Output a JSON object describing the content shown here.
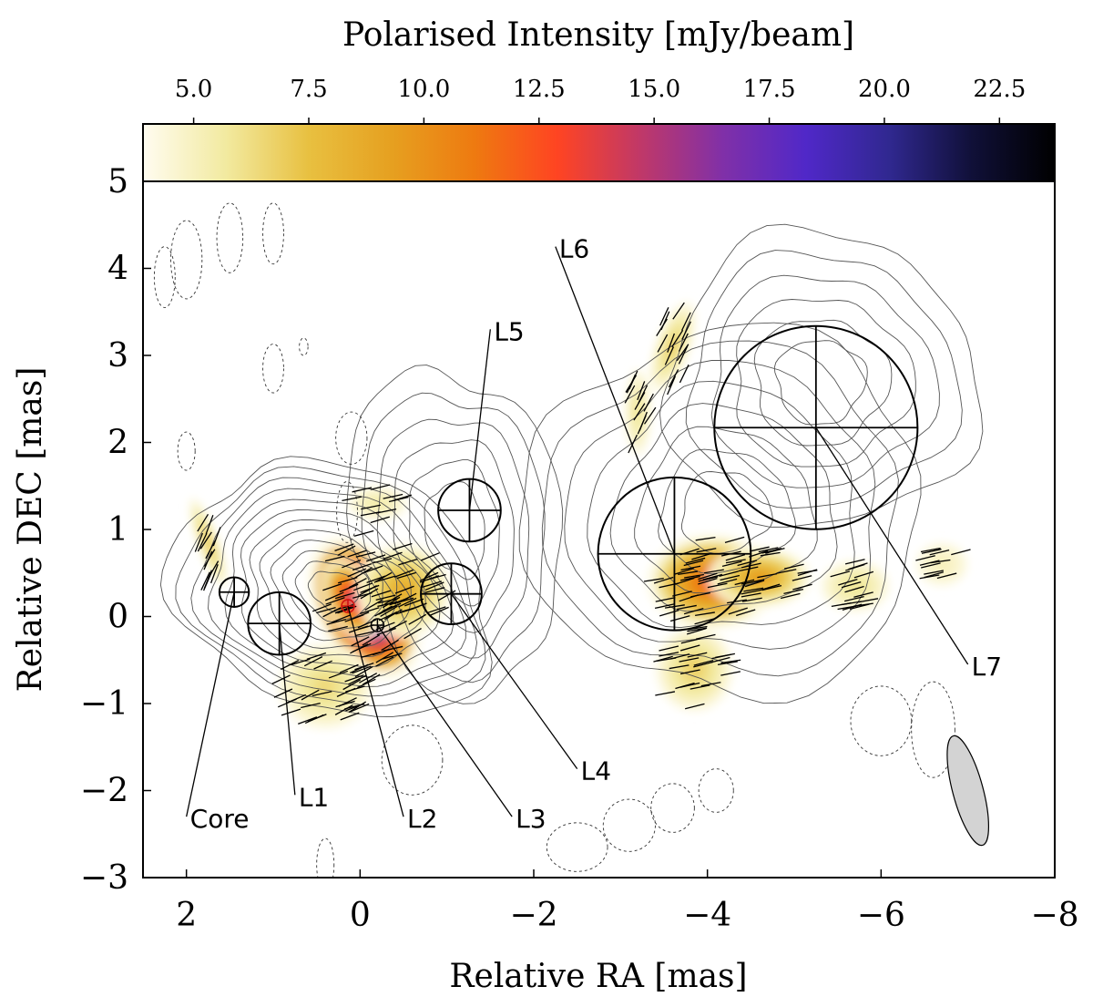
{
  "chart_data": {
    "type": "scatter",
    "subtype": "radio-polarisation-map",
    "xlabel": "Relative RA [mas]",
    "ylabel": "Relative DEC [mas]",
    "xlim": [
      2.5,
      -8
    ],
    "ylim": [
      -3,
      5
    ],
    "x_ticks": [
      2,
      0,
      -2,
      -4,
      -6,
      -8
    ],
    "x_tick_labels": [
      "2",
      "0",
      "−2",
      "−4",
      "−6",
      "−8"
    ],
    "y_ticks": [
      5,
      4,
      3,
      2,
      1,
      0,
      -1,
      -2,
      -3
    ],
    "y_tick_labels": [
      "5",
      "4",
      "3",
      "2",
      "1",
      "0",
      "−1",
      "−2",
      "−3"
    ],
    "colorbar": {
      "label": "Polarised Intensity [mJy/beam]",
      "range": [
        3.9,
        23.7
      ],
      "ticks": [
        5.0,
        7.5,
        10.0,
        12.5,
        15.0,
        17.5,
        20.0,
        22.5
      ],
      "tick_labels": [
        "5.0",
        "7.5",
        "10.0",
        "12.5",
        "15.0",
        "17.5",
        "20.0",
        "22.5"
      ],
      "colors": [
        "#fffcf0",
        "#f2eaa0",
        "#e8c040",
        "#e6a020",
        "#ee7a10",
        "#ff4422",
        "#c03868",
        "#8030a8",
        "#5028c8",
        "#302890",
        "#101038",
        "#000000"
      ],
      "placement": "top"
    },
    "components": [
      {
        "name": "Core",
        "x": 1.45,
        "y": 0.28,
        "r": 0.17
      },
      {
        "name": "L1",
        "x": 0.93,
        "y": -0.08,
        "r": 0.36
      },
      {
        "name": "L2",
        "x": 0.14,
        "y": 0.12,
        "r": 0.05
      },
      {
        "name": "L3",
        "x": -0.2,
        "y": -0.1,
        "r": 0.05
      },
      {
        "name": "L4",
        "x": -1.05,
        "y": 0.26,
        "r": 0.35
      },
      {
        "name": "L5",
        "x": -1.26,
        "y": 1.22,
        "r": 0.36
      },
      {
        "name": "L6",
        "x": -3.62,
        "y": 0.72,
        "r": 0.88
      },
      {
        "name": "L7",
        "x": -5.25,
        "y": 2.17,
        "r": 1.17
      }
    ],
    "label_positions": [
      {
        "name": "Core",
        "x": 2.0,
        "y": -2.3
      },
      {
        "name": "L1",
        "x": 0.75,
        "y": -2.05
      },
      {
        "name": "L2",
        "x": -0.5,
        "y": -2.3
      },
      {
        "name": "L3",
        "x": -1.75,
        "y": -2.3
      },
      {
        "name": "L4",
        "x": -2.5,
        "y": -1.75
      },
      {
        "name": "L5",
        "x": -1.5,
        "y": 3.3
      },
      {
        "name": "L6",
        "x": -2.25,
        "y": 4.25
      },
      {
        "name": "L7",
        "x": -7.0,
        "y": -0.55
      }
    ],
    "polarised_regions": [
      {
        "x": -0.05,
        "y": 0.1,
        "sx": 0.55,
        "sy": 0.9,
        "angle": 30,
        "peak": 23.5
      },
      {
        "x": 0.1,
        "y": 0.2,
        "sx": 0.3,
        "sy": 0.5,
        "angle": 25,
        "peak": 16
      },
      {
        "x": -0.5,
        "y": 0.3,
        "sx": 0.55,
        "sy": 0.55,
        "angle": 0,
        "peak": 9
      },
      {
        "x": 0.4,
        "y": -0.8,
        "sx": 0.55,
        "sy": 0.5,
        "angle": 0,
        "peak": 6.5
      },
      {
        "x": 1.75,
        "y": 0.85,
        "sx": 0.12,
        "sy": 0.55,
        "angle": 20,
        "peak": 7.5
      },
      {
        "x": -0.2,
        "y": 1.3,
        "sx": 0.35,
        "sy": 0.2,
        "angle": 0,
        "peak": 5.5
      },
      {
        "x": -4.05,
        "y": 0.4,
        "sx": 0.75,
        "sy": 0.55,
        "angle": 0,
        "peak": 13
      },
      {
        "x": -4.6,
        "y": 0.45,
        "sx": 0.6,
        "sy": 0.35,
        "angle": 0,
        "peak": 10
      },
      {
        "x": -3.85,
        "y": -0.6,
        "sx": 0.45,
        "sy": 0.5,
        "angle": 0,
        "peak": 7
      },
      {
        "x": -3.6,
        "y": 3.1,
        "sx": 0.2,
        "sy": 0.55,
        "angle": -20,
        "peak": 7
      },
      {
        "x": -3.2,
        "y": 2.35,
        "sx": 0.15,
        "sy": 0.5,
        "angle": 0,
        "peak": 6
      },
      {
        "x": -6.7,
        "y": 0.6,
        "sx": 0.3,
        "sy": 0.25,
        "angle": 0,
        "peak": 5
      },
      {
        "x": -5.7,
        "y": 0.35,
        "sx": 0.4,
        "sy": 0.3,
        "angle": 0,
        "peak": 6
      }
    ],
    "contour_groups": [
      {
        "x": 0.3,
        "y": 0.3,
        "sx": 1.9,
        "sy": 1.4,
        "angle": -20,
        "levels": 12
      },
      {
        "x": -1.1,
        "y": 1.0,
        "sx": 1.2,
        "sy": 1.9,
        "angle": 10,
        "levels": 6
      },
      {
        "x": -4.2,
        "y": 1.2,
        "sx": 2.3,
        "sy": 2.1,
        "angle": 5,
        "levels": 8
      },
      {
        "x": -5.3,
        "y": 2.7,
        "sx": 1.8,
        "sy": 1.7,
        "angle": 0,
        "levels": 6
      }
    ],
    "negative_contours": [
      {
        "x": 2.0,
        "y": 4.1,
        "sx": 0.18,
        "sy": 0.45,
        "angle": 0
      },
      {
        "x": 1.5,
        "y": 4.35,
        "sx": 0.15,
        "sy": 0.4,
        "angle": 0
      },
      {
        "x": 1.0,
        "y": 4.4,
        "sx": 0.12,
        "sy": 0.35,
        "angle": 0
      },
      {
        "x": 2.25,
        "y": 3.9,
        "sx": 0.12,
        "sy": 0.35,
        "angle": 0
      },
      {
        "x": 1.0,
        "y": 2.85,
        "sx": 0.12,
        "sy": 0.28,
        "angle": 0
      },
      {
        "x": 0.65,
        "y": 3.1,
        "sx": 0.05,
        "sy": 0.1,
        "angle": 0
      },
      {
        "x": 2.0,
        "y": 1.9,
        "sx": 0.1,
        "sy": 0.22,
        "angle": 0
      },
      {
        "x": 0.1,
        "y": 2.05,
        "sx": 0.18,
        "sy": 0.3,
        "angle": 0
      },
      {
        "x": 0.15,
        "y": 1.2,
        "sx": 0.12,
        "sy": 0.35,
        "angle": 0
      },
      {
        "x": -0.6,
        "y": -1.65,
        "sx": 0.35,
        "sy": 0.4,
        "angle": 0
      },
      {
        "x": 0.4,
        "y": -2.85,
        "sx": 0.1,
        "sy": 0.3,
        "angle": 0
      },
      {
        "x": -2.5,
        "y": -2.65,
        "sx": 0.35,
        "sy": 0.28,
        "angle": 0
      },
      {
        "x": -3.1,
        "y": -2.4,
        "sx": 0.3,
        "sy": 0.3,
        "angle": 0
      },
      {
        "x": -3.6,
        "y": -2.2,
        "sx": 0.25,
        "sy": 0.28,
        "angle": 0
      },
      {
        "x": -4.1,
        "y": -2.0,
        "sx": 0.2,
        "sy": 0.25,
        "angle": 0
      },
      {
        "x": -6.0,
        "y": -1.2,
        "sx": 0.35,
        "sy": 0.4,
        "angle": 0
      },
      {
        "x": -6.6,
        "y": -1.3,
        "sx": 0.25,
        "sy": 0.55,
        "angle": 0
      }
    ],
    "beam": {
      "x": -7.0,
      "y": -2.0,
      "major": 1.3,
      "minor": 0.35,
      "angle": -15,
      "fill": "#d3d3d3"
    },
    "grid": false,
    "legend": "none",
    "colors": {
      "contour": "#555555",
      "evpa": "#000000",
      "marker": "#000000",
      "core_cross": "#d01010"
    }
  }
}
